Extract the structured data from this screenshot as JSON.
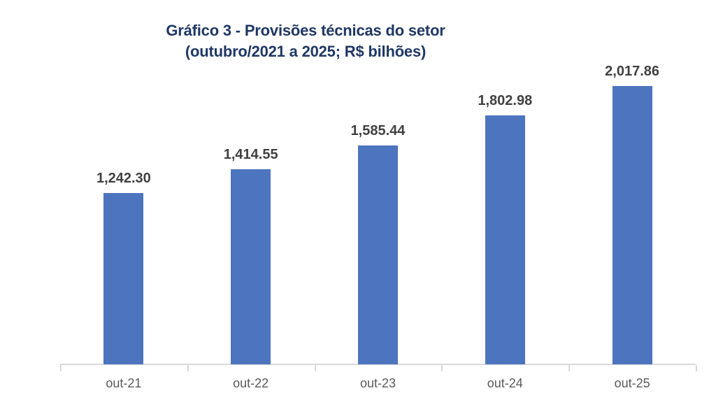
{
  "chart": {
    "title_line1": "Gráfico 3 - Provisões técnicas do setor",
    "title_line2": "(outubro/2021 a 2025; R$ bilhões)"
  },
  "chart_data": {
    "type": "bar",
    "title": "Gráfico 3 - Provisões técnicas do setor (outubro/2021 a 2025; R$ bilhões)",
    "categories": [
      "out-21",
      "out-22",
      "out-23",
      "out-24",
      "out-25"
    ],
    "values": [
      1242.3,
      1414.55,
      1585.44,
      1802.98,
      2017.86
    ],
    "value_labels": [
      "1,242.30",
      "1,414.55",
      "1,585.44",
      "1,802.98",
      "2,017.86"
    ],
    "xlabel": "",
    "ylabel": "",
    "ylim": [
      0,
      2017.86
    ],
    "grid": false,
    "legend": false,
    "colors": {
      "bar": "#4d74be",
      "title": "#1f3864",
      "data_label": "#404040",
      "axis_label": "#595959",
      "axis_line": "#d9d9d9"
    }
  }
}
